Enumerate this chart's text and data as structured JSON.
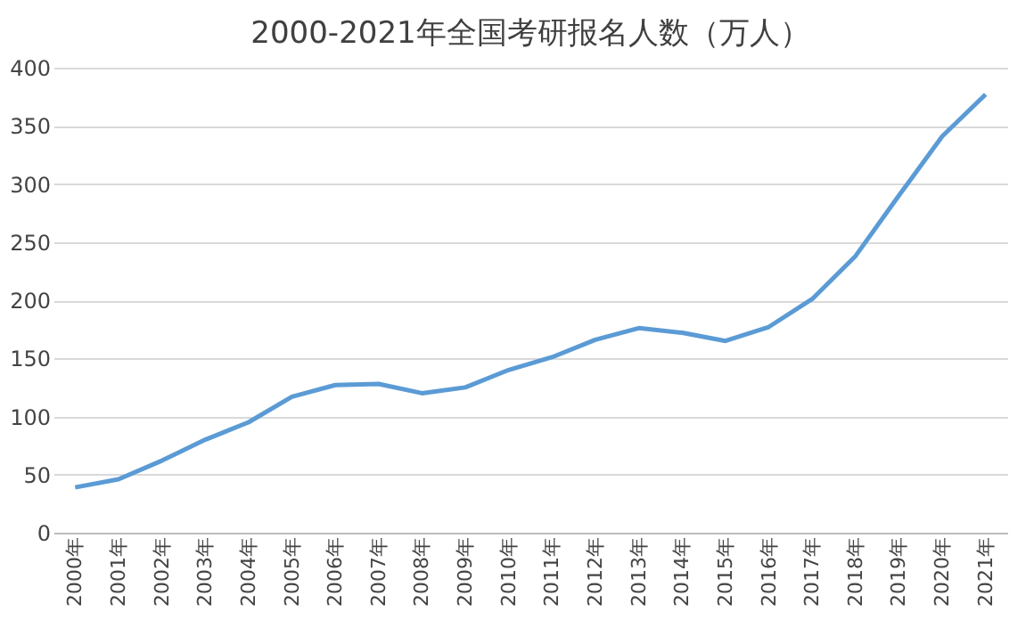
{
  "chart_data": {
    "type": "line",
    "title": "2000-2021年全国考研报名人数（万人）",
    "categories": [
      "2000年",
      "2001年",
      "2002年",
      "2003年",
      "2004年",
      "2005年",
      "2006年",
      "2007年",
      "2008年",
      "2009年",
      "2010年",
      "2011年",
      "2012年",
      "2013年",
      "2014年",
      "2015年",
      "2016年",
      "2017年",
      "2018年",
      "2019年",
      "2020年",
      "2021年"
    ],
    "series": [
      {
        "color": "#5b9bd5",
        "values": [
          39,
          46,
          62,
          80,
          95,
          117,
          127,
          128,
          120,
          125,
          140,
          151,
          166,
          176,
          172,
          165,
          177,
          201,
          238,
          290,
          341,
          377
        ]
      }
    ],
    "ylim": [
      0,
      400
    ],
    "yticks": [
      0,
      50,
      100,
      150,
      200,
      250,
      300,
      350,
      400
    ],
    "grid": "y",
    "legend": false,
    "marker": "none",
    "line_style": "solid"
  }
}
